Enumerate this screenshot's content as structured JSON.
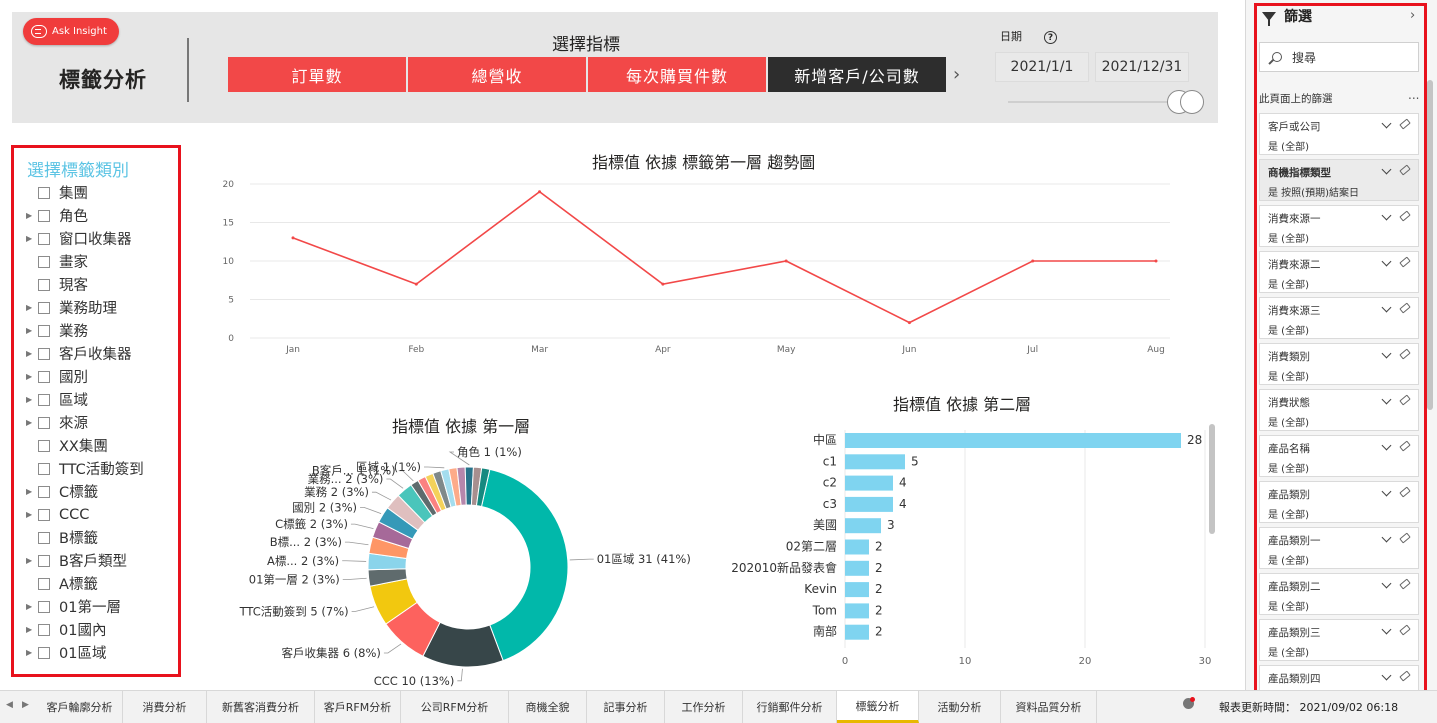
{
  "header": {
    "ask_insight": "Ask Insight",
    "page_title": "標籤分析",
    "metric_label": "選擇指標",
    "metrics": [
      {
        "label": "訂單數",
        "active": false
      },
      {
        "label": "總營收",
        "active": false
      },
      {
        "label": "每次購買件數",
        "active": false
      },
      {
        "label": "新增客戶/公司數",
        "active": true
      }
    ],
    "date_label": "日期",
    "date_start": "2021/1/1",
    "date_end": "2021/12/31"
  },
  "category_slicer": {
    "title": "選擇標籤類別",
    "items": [
      {
        "label": "集團",
        "expandable": false
      },
      {
        "label": "角色",
        "expandable": true
      },
      {
        "label": "窗口收集器",
        "expandable": true
      },
      {
        "label": "畫家",
        "expandable": false
      },
      {
        "label": "現客",
        "expandable": false
      },
      {
        "label": "業務助理",
        "expandable": true
      },
      {
        "label": "業務",
        "expandable": true
      },
      {
        "label": "客戶收集器",
        "expandable": true
      },
      {
        "label": "國別",
        "expandable": true
      },
      {
        "label": "區域",
        "expandable": true
      },
      {
        "label": "來源",
        "expandable": true
      },
      {
        "label": "XX集團",
        "expandable": false
      },
      {
        "label": "TTC活動簽到",
        "expandable": false
      },
      {
        "label": "C標籤",
        "expandable": true
      },
      {
        "label": "CCC",
        "expandable": true
      },
      {
        "label": "B標籤",
        "expandable": false
      },
      {
        "label": "B客戶類型",
        "expandable": true
      },
      {
        "label": "A標籤",
        "expandable": false
      },
      {
        "label": "01第一層",
        "expandable": true
      },
      {
        "label": "01國內",
        "expandable": true
      },
      {
        "label": "01區域",
        "expandable": true
      }
    ]
  },
  "colors": {
    "line": "#f24848",
    "bar": "#7fd4f0",
    "slicer_title": "#5cc4e4",
    "highlight_border": "#e8121d"
  },
  "chart_data": [
    {
      "type": "line",
      "title": "指標值 依據 標籤第一層 趨勢圖",
      "x": [
        "Jan",
        "Feb",
        "Mar",
        "Apr",
        "May",
        "Jun",
        "Jul",
        "Aug"
      ],
      "y_ticks": [
        "0",
        "5",
        "10",
        "15",
        "20"
      ],
      "ylim": [
        0,
        20
      ],
      "series": [
        {
          "values": [
            13,
            7,
            19,
            7,
            10,
            2,
            10,
            10
          ]
        }
      ],
      "grid": true
    },
    {
      "type": "pie",
      "title": "指標值 依據 第一層",
      "slices": [
        {
          "label": "01區域 31 (41%)",
          "value": 31,
          "color": "#01b8aa"
        },
        {
          "label": "CCC 10 (13%)",
          "value": 10,
          "color": "#374649"
        },
        {
          "label": "客戶收集器 6 (8%)",
          "value": 6,
          "color": "#fd625e"
        },
        {
          "label": "TTC活動簽到 5 (7%)",
          "value": 5,
          "color": "#f2c80f"
        },
        {
          "label": "01第一層 2 (3%)",
          "value": 2,
          "color": "#5f6b6d"
        },
        {
          "label": "A標... 2 (3%)",
          "value": 2,
          "color": "#8ad4eb"
        },
        {
          "label": "B標... 2 (3%)",
          "value": 2,
          "color": "#fe9666"
        },
        {
          "label": "C標籤 2 (3%)",
          "value": 2,
          "color": "#a66999"
        },
        {
          "label": "國別 2 (3%)",
          "value": 2,
          "color": "#3599b8"
        },
        {
          "label": "業務 2 (3%)",
          "value": 2,
          "color": "#dfbfbf"
        },
        {
          "label": "業務... 2 (3%)",
          "value": 2,
          "color": "#4ac5bb"
        },
        {
          "label": "B客戶... 1 (1%)",
          "value": 1,
          "color": "#5f6b6d"
        },
        {
          "label": "",
          "value": 1,
          "color": "#fb8281"
        },
        {
          "label": "",
          "value": 1,
          "color": "#f4d25a"
        },
        {
          "label": "",
          "value": 1,
          "color": "#7f898a"
        },
        {
          "label": "區域 1 (1%)",
          "value": 1,
          "color": "#a4ddee"
        },
        {
          "label": "",
          "value": 1,
          "color": "#fdab89"
        },
        {
          "label": "",
          "value": 1,
          "color": "#b687ac"
        },
        {
          "label": "角色 1 (1%)",
          "value": 1,
          "color": "#28738a"
        },
        {
          "label": "",
          "value": 1,
          "color": "#a78f8f"
        },
        {
          "label": "",
          "value": 1,
          "color": "#168980"
        }
      ]
    },
    {
      "type": "bar",
      "orientation": "horizontal",
      "title": "指標值 依據 第二層",
      "categories": [
        "中區",
        "c1",
        "c2",
        "c3",
        "美國",
        "02第二層",
        "202010新品發表會",
        "Kevin",
        "Tom",
        "南部"
      ],
      "values": [
        28,
        5,
        4,
        4,
        3,
        2,
        2,
        2,
        2,
        2
      ],
      "x_ticks": [
        "0",
        "10",
        "20",
        "30"
      ],
      "xlim": [
        0,
        30
      ]
    }
  ],
  "filters": {
    "title": "篩選",
    "search_placeholder": "搜尋",
    "section_label": "此頁面上的篩選",
    "more": "...",
    "items": [
      {
        "name": "客戶或公司",
        "value": "是 (全部)",
        "active": false
      },
      {
        "name": "商機指標類型",
        "value": "是 按照(預期)結案日",
        "active": true
      },
      {
        "name": "消費來源一",
        "value": "是 (全部)",
        "active": false
      },
      {
        "name": "消費來源二",
        "value": "是 (全部)",
        "active": false
      },
      {
        "name": "消費來源三",
        "value": "是 (全部)",
        "active": false
      },
      {
        "name": "消費類別",
        "value": "是 (全部)",
        "active": false
      },
      {
        "name": "消費狀態",
        "value": "是 (全部)",
        "active": false
      },
      {
        "name": "產品名稱",
        "value": "是 (全部)",
        "active": false
      },
      {
        "name": "產品類別",
        "value": "是 (全部)",
        "active": false
      },
      {
        "name": "產品類別一",
        "value": "是 (全部)",
        "active": false
      },
      {
        "name": "產品類別二",
        "value": "是 (全部)",
        "active": false
      },
      {
        "name": "產品類別三",
        "value": "是 (全部)",
        "active": false
      },
      {
        "name": "產品類別四",
        "value": "",
        "active": false
      }
    ]
  },
  "tabs": {
    "items": [
      "客戶輪廓分析",
      "消費分析",
      "新舊客消費分析",
      "客戶RFM分析",
      "公司RFM分析",
      "商機全貌",
      "記事分析",
      "工作分析",
      "行銷郵件分析",
      "標籤分析",
      "活動分析",
      "資料品質分析"
    ],
    "active": "標籤分析",
    "report_time": "報表更新時間： 2021/09/02 06:18"
  }
}
